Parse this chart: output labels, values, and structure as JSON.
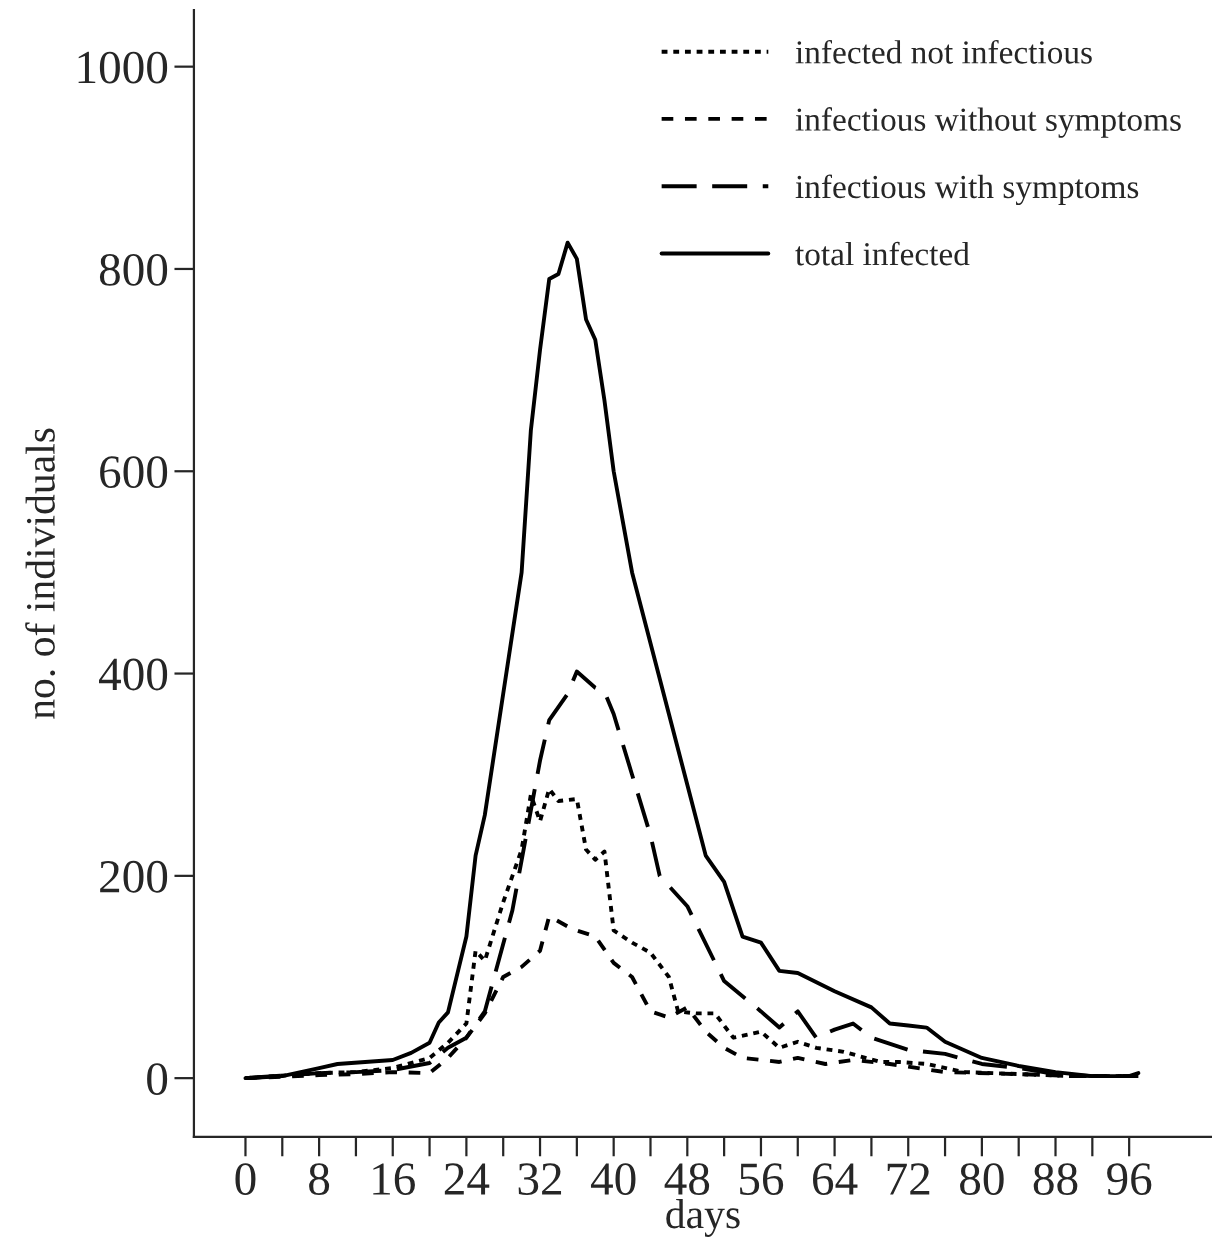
{
  "chart_data": {
    "type": "line",
    "xlabel": "days",
    "ylabel": "no. of individuals",
    "xlim": [
      -5.6,
      105
    ],
    "ylim": [
      -58,
      1056
    ],
    "xticks": [
      0,
      {
        "value": 4,
        "label": null
      },
      8,
      {
        "value": 12,
        "label": null
      },
      16,
      {
        "value": 20,
        "label": null
      },
      24,
      {
        "value": 28,
        "label": null
      },
      32,
      {
        "value": 36,
        "label": null
      },
      40,
      {
        "value": 44,
        "label": null
      },
      48,
      {
        "value": 52,
        "label": null
      },
      56,
      {
        "value": 60,
        "label": null
      },
      64,
      {
        "value": 68,
        "label": null
      },
      72,
      {
        "value": 76,
        "label": null
      },
      80,
      {
        "value": 84,
        "label": null
      },
      88,
      {
        "value": 92,
        "label": null
      },
      96
    ],
    "yticks": [
      0,
      200,
      400,
      600,
      800,
      1000
    ],
    "grid": false,
    "legend": "top right",
    "marker": "none",
    "series": [
      {
        "name": "infected not infectious",
        "color": "#000000",
        "line_style": "dotted",
        "x": [
          0,
          8,
          12,
          16,
          20,
          22,
          24,
          25,
          26,
          28,
          30,
          31,
          32,
          33,
          34,
          36,
          37,
          38,
          39,
          40,
          42,
          44,
          46,
          47,
          49,
          51,
          53,
          56,
          58,
          60,
          62,
          65,
          69,
          71,
          74,
          78,
          84,
          90,
          97
        ],
        "values": [
          0,
          5,
          6,
          10,
          20,
          35,
          54,
          126,
          116,
          174,
          226,
          280,
          254,
          286,
          274,
          276,
          226,
          216,
          224,
          146,
          134,
          124,
          100,
          66,
          64,
          64,
          40,
          46,
          30,
          36,
          30,
          26,
          16,
          16,
          14,
          6,
          4,
          2,
          2
        ]
      },
      {
        "name": "infectious without symptoms",
        "color": "#000000",
        "line_style": "dashed",
        "x": [
          0,
          8,
          12,
          16,
          20,
          22,
          24,
          26,
          28,
          30,
          32,
          33,
          35,
          36,
          38,
          40,
          42,
          44,
          46,
          48,
          50,
          52,
          54,
          58,
          60,
          63,
          66,
          70,
          76,
          84,
          90,
          97
        ],
        "values": [
          0,
          3,
          4,
          6,
          5,
          20,
          40,
          64,
          100,
          110,
          126,
          160,
          150,
          146,
          140,
          114,
          100,
          66,
          60,
          70,
          46,
          30,
          20,
          16,
          20,
          14,
          18,
          14,
          6,
          4,
          2,
          2
        ]
      },
      {
        "name": "infectious with symptoms",
        "color": "#000000",
        "line_style": "dashed",
        "x": [
          0,
          8,
          12,
          16,
          20,
          22,
          24,
          26,
          29,
          32,
          33,
          35,
          36,
          38,
          39,
          40,
          42,
          44,
          45,
          48,
          52,
          56,
          58,
          60,
          62,
          64,
          66,
          68,
          72,
          76,
          80,
          84,
          88,
          92,
          97
        ],
        "values": [
          0,
          5,
          6,
          8,
          15,
          30,
          40,
          66,
          166,
          314,
          354,
          380,
          402,
          386,
          382,
          360,
          300,
          240,
          200,
          170,
          96,
          66,
          50,
          66,
          40,
          48,
          54,
          40,
          28,
          24,
          14,
          10,
          4,
          2,
          2
        ]
      },
      {
        "name": "total infected",
        "color": "#000000",
        "line_style": "solid",
        "x": [
          0,
          4,
          8,
          10,
          16,
          18,
          20,
          21,
          22,
          24,
          25,
          26,
          28,
          30,
          31,
          32,
          33,
          34,
          35,
          36,
          37,
          38,
          39,
          40,
          42,
          44,
          46,
          48,
          50,
          52,
          54,
          56,
          58,
          60,
          64,
          68,
          70,
          72,
          74,
          76,
          80,
          84,
          88,
          92,
          96,
          97
        ],
        "values": [
          0,
          2,
          10,
          14,
          18,
          25,
          35,
          55,
          65,
          140,
          220,
          260,
          380,
          500,
          640,
          720,
          790,
          795,
          826,
          810,
          750,
          730,
          670,
          600,
          500,
          430,
          360,
          290,
          220,
          194,
          140,
          134,
          106,
          104,
          86,
          70,
          54,
          52,
          50,
          36,
          20,
          12,
          6,
          2,
          2,
          5
        ]
      }
    ]
  }
}
